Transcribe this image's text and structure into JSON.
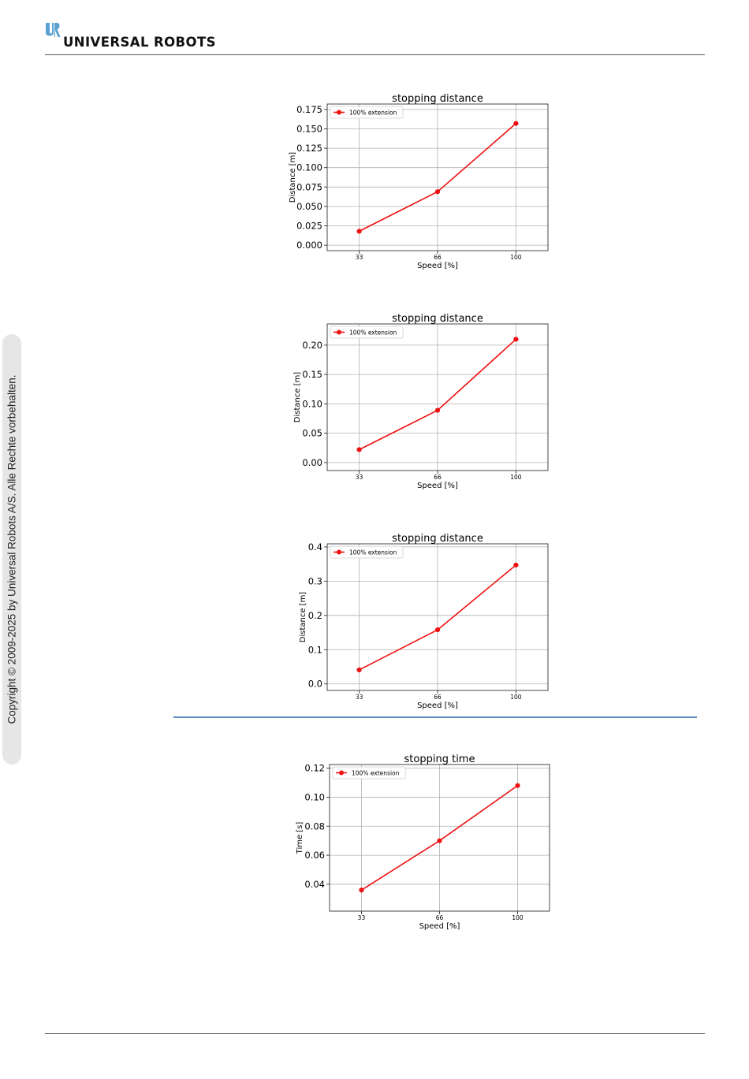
{
  "header": {
    "brand": "UNIVERSAL ROBOTS",
    "logo_icon": "ur-logo-icon",
    "brand_color": "#5aa0d0"
  },
  "sidebar": {
    "copyright": "Copyright © 2009-2025 by Universal Robots A/S. Alle Rechte vorbehalten."
  },
  "colors": {
    "series": "#ee1111",
    "divider": "#5b8fc4"
  },
  "chart_data": [
    {
      "type": "line",
      "title": "stopping distance",
      "xlabel": "Speed [%]",
      "ylabel": "Distance [m]",
      "x": [
        "33",
        "66",
        "100"
      ],
      "series": [
        {
          "name": "100% extension",
          "values": [
            0.018,
            0.069,
            0.157
          ]
        }
      ],
      "ylim": [
        -0.007,
        0.182
      ],
      "yticks": [
        0.0,
        0.025,
        0.05,
        0.075,
        0.1,
        0.125,
        0.15,
        0.175
      ],
      "ytick_labels": [
        "0.000",
        "0.025",
        "0.050",
        "0.075",
        "0.100",
        "0.125",
        "0.150",
        "0.175"
      ],
      "grid": true,
      "legend": "top-left"
    },
    {
      "type": "line",
      "title": "stopping distance",
      "xlabel": "Speed [%]",
      "ylabel": "Distance [m]",
      "x": [
        "33",
        "66",
        "100"
      ],
      "series": [
        {
          "name": "100% extension",
          "values": [
            0.022,
            0.089,
            0.21
          ]
        }
      ],
      "ylim": [
        -0.0136,
        0.2361
      ],
      "yticks": [
        0.0,
        0.05,
        0.1,
        0.15,
        0.2
      ],
      "ytick_labels": [
        "0.00",
        "0.05",
        "0.10",
        "0.15",
        "0.20"
      ],
      "grid": true,
      "legend": "top-left"
    },
    {
      "type": "line",
      "title": "stopping distance",
      "xlabel": "Speed [%]",
      "ylabel": "Distance [m]",
      "x": [
        "33",
        "66",
        "100"
      ],
      "series": [
        {
          "name": "100% extension",
          "values": [
            0.041,
            0.158,
            0.347
          ]
        }
      ],
      "ylim": [
        -0.019,
        0.409
      ],
      "yticks": [
        0.0,
        0.1,
        0.2,
        0.3,
        0.4
      ],
      "ytick_labels": [
        "0.0",
        "0.1",
        "0.2",
        "0.3",
        "0.4"
      ],
      "grid": true,
      "legend": "top-left"
    },
    {
      "type": "line",
      "title": "stopping time",
      "xlabel": "Speed [%]",
      "ylabel": "Time [s]",
      "x": [
        "33",
        "66",
        "100"
      ],
      "series": [
        {
          "name": "100% extension",
          "values": [
            0.036,
            0.07,
            0.108
          ]
        }
      ],
      "ylim": [
        0.0215,
        0.1225
      ],
      "yticks": [
        0.04,
        0.06,
        0.08,
        0.1,
        0.12
      ],
      "ytick_labels": [
        "0.04",
        "0.06",
        "0.08",
        "0.10",
        "0.12"
      ],
      "grid": true,
      "legend": "top-left"
    }
  ]
}
